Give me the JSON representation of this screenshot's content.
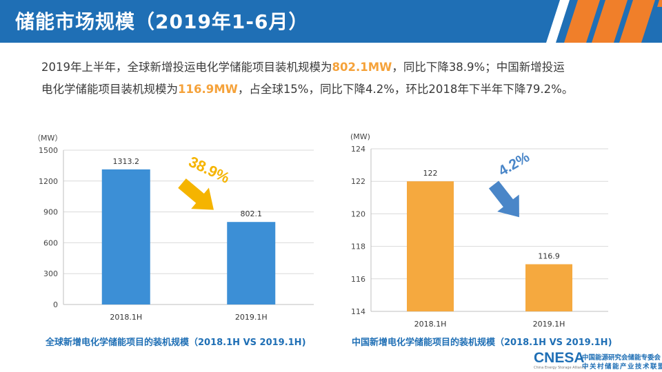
{
  "header": {
    "title": "储能市场规模（2019年1-6月）",
    "bar_color": "#1f6fb5",
    "stripe_color": "#f07f2a"
  },
  "summary": {
    "line1_a": "2019年上半年，全球新增投运电化学储能项目装机规模为",
    "line1_hl": "802.1MW",
    "line1_b": "，同比下降38.9%；中国新增投运",
    "line2_a": "电化学储能项目装机规模为",
    "line2_hl": "116.9MW",
    "line2_b": "，占全球15%，同比下降4.2%，环比2018年下半年下降79.2%。",
    "highlight_color": "#f5a23a"
  },
  "chart_data": [
    {
      "type": "bar",
      "title": "全球新增电化学储能项目的装机规模（2018.1H VS 2019.1H)",
      "unit_label": "（MW）",
      "categories": [
        "2018.1H",
        "2019.1H"
      ],
      "values": [
        1313.2,
        802.1
      ],
      "value_labels": [
        "1313.2",
        "802.1"
      ],
      "yticks": [
        0,
        300,
        600,
        900,
        1200,
        1500
      ],
      "ylim": [
        0,
        1500
      ],
      "grid": true,
      "bar_color": "#3c8fd6",
      "annotation": {
        "text": "38.9%",
        "color": "#f5b400",
        "arrow_color": "#f5b400"
      }
    },
    {
      "type": "bar",
      "title": "中国新增电化学储能项目的装机规模（2018.1H VS 2019.1H)",
      "unit_label": "(MW)",
      "categories": [
        "2018.1H",
        "2019.1H"
      ],
      "values": [
        122,
        116.9
      ],
      "value_labels": [
        "122",
        "116.9"
      ],
      "yticks": [
        114,
        116,
        118,
        120,
        122,
        124
      ],
      "ylim": [
        114,
        124
      ],
      "grid": true,
      "bar_color": "#f5a93f",
      "annotation": {
        "text": "4.2%",
        "color": "#4a86c8",
        "arrow_color": "#4a86c8"
      }
    }
  ],
  "logo": {
    "mark": "CNESA",
    "sub": "China Energy Storage Alliance",
    "cn1": "中国能源研究会储能专委会",
    "cn2": "中关村储能产业技术联盟"
  }
}
